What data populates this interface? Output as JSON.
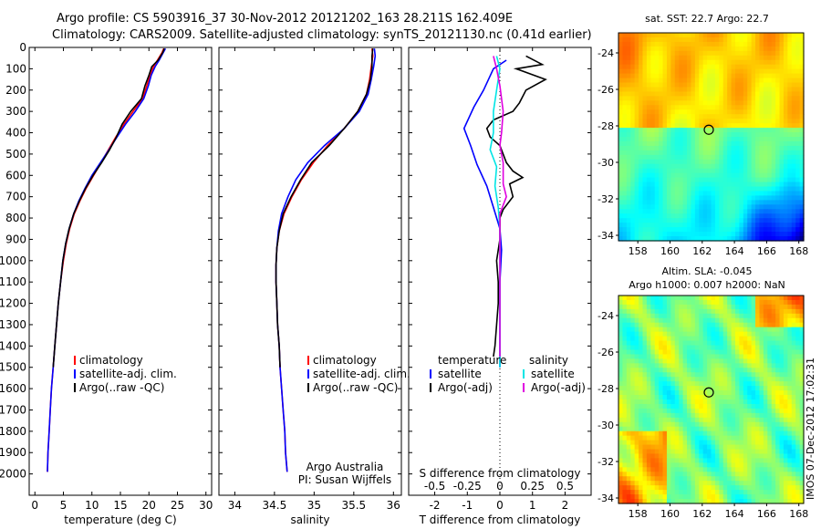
{
  "header": {
    "line1": "Argo profile: CS 5903916_37 30-Nov-2012 20121202_163 28.211S 162.409E",
    "line2": "Climatology: CARS2009. Satellite-adjusted climatology: synTS_20121130.nc (0.41d earlier)"
  },
  "side_label": "IMOS 07-Dec-2012 17:02:31",
  "chart_data": [
    {
      "id": "temperature",
      "type": "line",
      "xlabel": "temperature (deg C)",
      "ylabel": "",
      "xlim": [
        -1,
        31
      ],
      "ylim": [
        0,
        2100
      ],
      "y_reversed": true,
      "xticks": [
        0,
        5,
        10,
        15,
        20,
        25,
        30
      ],
      "yticks": [
        0,
        100,
        200,
        300,
        400,
        500,
        600,
        700,
        800,
        900,
        1000,
        1100,
        1200,
        1300,
        1400,
        1500,
        1600,
        1700,
        1800,
        1900,
        2000
      ],
      "legend": [
        "climatology",
        "satellite-adj. clim.",
        "Argo(..raw -QC)"
      ],
      "series": [
        {
          "name": "climatology",
          "color": "#ff0000",
          "points": [
            [
              22.6,
              5
            ],
            [
              22.3,
              25
            ],
            [
              21.5,
              60
            ],
            [
              20.8,
              90
            ],
            [
              20.2,
              130
            ],
            [
              19.6,
              180
            ],
            [
              18.9,
              240
            ],
            [
              17.2,
              300
            ],
            [
              15.6,
              360
            ],
            [
              14.2,
              420
            ],
            [
              12.9,
              480
            ],
            [
              11.6,
              540
            ],
            [
              10.3,
              600
            ],
            [
              9.0,
              660
            ],
            [
              7.9,
              720
            ],
            [
              6.9,
              780
            ],
            [
              6.1,
              850
            ],
            [
              5.5,
              920
            ],
            [
              5.0,
              1000
            ],
            [
              4.5,
              1100
            ],
            [
              4.1,
              1200
            ],
            [
              3.8,
              1300
            ],
            [
              3.5,
              1400
            ],
            [
              3.2,
              1500
            ],
            [
              2.9,
              1600
            ],
            [
              2.7,
              1700
            ],
            [
              2.5,
              1800
            ],
            [
              2.3,
              1900
            ],
            [
              2.2,
              1990
            ]
          ]
        },
        {
          "name": "satellite-adj. clim.",
          "color": "#0000ff",
          "points": [
            [
              22.9,
              5
            ],
            [
              22.5,
              25
            ],
            [
              21.8,
              60
            ],
            [
              21.1,
              90
            ],
            [
              20.4,
              130
            ],
            [
              19.9,
              180
            ],
            [
              19.1,
              240
            ],
            [
              17.6,
              300
            ],
            [
              15.9,
              360
            ],
            [
              14.4,
              420
            ],
            [
              13.0,
              480
            ],
            [
              11.5,
              540
            ],
            [
              10.0,
              600
            ],
            [
              8.8,
              660
            ],
            [
              7.7,
              720
            ],
            [
              6.8,
              780
            ],
            [
              6.0,
              850
            ],
            [
              5.4,
              920
            ],
            [
              4.9,
              1000
            ],
            [
              4.5,
              1100
            ],
            [
              4.1,
              1200
            ],
            [
              3.8,
              1300
            ],
            [
              3.5,
              1400
            ],
            [
              3.2,
              1500
            ],
            [
              2.9,
              1600
            ],
            [
              2.7,
              1700
            ],
            [
              2.5,
              1800
            ],
            [
              2.3,
              1900
            ],
            [
              2.2,
              1990
            ]
          ]
        },
        {
          "name": "Argo(..raw -QC)",
          "color": "#000000",
          "points": [
            [
              22.7,
              5
            ],
            [
              22.4,
              25
            ],
            [
              21.6,
              60
            ],
            [
              20.5,
              90
            ],
            [
              20.0,
              130
            ],
            [
              19.3,
              180
            ],
            [
              18.7,
              240
            ],
            [
              16.8,
              300
            ],
            [
              15.3,
              360
            ],
            [
              14.3,
              420
            ],
            [
              13.1,
              480
            ],
            [
              11.7,
              540
            ],
            [
              10.2,
              600
            ],
            [
              8.9,
              660
            ],
            [
              7.8,
              720
            ],
            [
              6.8,
              780
            ],
            [
              6.0,
              850
            ],
            [
              5.4,
              920
            ],
            [
              4.9,
              1000
            ],
            [
              4.5,
              1100
            ],
            [
              4.1,
              1200
            ],
            [
              3.8,
              1300
            ],
            [
              3.5,
              1400
            ],
            [
              3.2,
              1500
            ]
          ]
        }
      ]
    },
    {
      "id": "salinity",
      "type": "line",
      "xlabel": "salinity",
      "ylabel": "",
      "xlim": [
        33.8,
        36.1
      ],
      "ylim": [
        0,
        2100
      ],
      "y_reversed": true,
      "xticks": [
        34,
        34.5,
        35,
        35.5,
        36
      ],
      "xticklabels": [
        "34",
        "34.5",
        "35",
        "35.5",
        "36"
      ],
      "legend": [
        "climatology",
        "satellite-adj. clim.",
        "Argo(..raw -QC)"
      ],
      "annotation": [
        "Argo Australia",
        "PI: Susan Wijffels"
      ],
      "series": [
        {
          "name": "climatology",
          "color": "#ff0000",
          "points": [
            [
              35.73,
              5
            ],
            [
              35.74,
              40
            ],
            [
              35.72,
              90
            ],
            [
              35.7,
              150
            ],
            [
              35.66,
              220
            ],
            [
              35.55,
              300
            ],
            [
              35.38,
              380
            ],
            [
              35.17,
              460
            ],
            [
              34.99,
              540
            ],
            [
              34.84,
              620
            ],
            [
              34.72,
              700
            ],
            [
              34.62,
              780
            ],
            [
              34.56,
              860
            ],
            [
              34.53,
              940
            ],
            [
              34.52,
              1020
            ],
            [
              34.52,
              1100
            ],
            [
              34.53,
              1200
            ],
            [
              34.54,
              1300
            ],
            [
              34.56,
              1400
            ],
            [
              34.57,
              1500
            ],
            [
              34.59,
              1600
            ],
            [
              34.61,
              1700
            ],
            [
              34.63,
              1800
            ],
            [
              34.64,
              1900
            ],
            [
              34.66,
              1990
            ]
          ]
        },
        {
          "name": "satellite-adj. clim.",
          "color": "#0000ff",
          "points": [
            [
              35.76,
              5
            ],
            [
              35.77,
              40
            ],
            [
              35.75,
              90
            ],
            [
              35.72,
              150
            ],
            [
              35.68,
              220
            ],
            [
              35.57,
              300
            ],
            [
              35.38,
              380
            ],
            [
              35.13,
              460
            ],
            [
              34.92,
              540
            ],
            [
              34.77,
              620
            ],
            [
              34.67,
              700
            ],
            [
              34.59,
              780
            ],
            [
              34.55,
              860
            ],
            [
              34.53,
              940
            ],
            [
              34.52,
              1020
            ],
            [
              34.52,
              1100
            ],
            [
              34.53,
              1200
            ],
            [
              34.54,
              1300
            ],
            [
              34.56,
              1400
            ],
            [
              34.57,
              1500
            ],
            [
              34.59,
              1600
            ],
            [
              34.61,
              1700
            ],
            [
              34.63,
              1800
            ],
            [
              34.64,
              1900
            ],
            [
              34.66,
              1990
            ]
          ]
        },
        {
          "name": "Argo(..raw -QC)",
          "color": "#000000",
          "points": [
            [
              35.74,
              5
            ],
            [
              35.73,
              40
            ],
            [
              35.73,
              90
            ],
            [
              35.71,
              150
            ],
            [
              35.66,
              220
            ],
            [
              35.55,
              300
            ],
            [
              35.38,
              380
            ],
            [
              35.19,
              460
            ],
            [
              34.97,
              540
            ],
            [
              34.83,
              620
            ],
            [
              34.71,
              700
            ],
            [
              34.61,
              780
            ],
            [
              34.56,
              860
            ],
            [
              34.53,
              940
            ],
            [
              34.52,
              1020
            ],
            [
              34.52,
              1100
            ],
            [
              34.53,
              1200
            ],
            [
              34.54,
              1300
            ],
            [
              34.56,
              1400
            ],
            [
              34.57,
              1500
            ]
          ]
        }
      ]
    },
    {
      "id": "difference",
      "type": "line",
      "xlabel": "T difference from climatology",
      "xlabel_top": "S difference from climatology",
      "ylabel": "",
      "xlim": [
        -2.8,
        2.8
      ],
      "ylim": [
        0,
        2100
      ],
      "y_reversed": true,
      "xticks": [
        -2,
        -1,
        0,
        1,
        2
      ],
      "xticklabels": [
        "-2",
        "-1",
        "0",
        "1",
        "2"
      ],
      "s_ticklabels": [
        "-0.5",
        "-0.25",
        "0",
        "0.25",
        "0.5"
      ],
      "legend_temperature": {
        "title": "temperature",
        "items": [
          "satellite",
          "Argo(-adj)"
        ]
      },
      "legend_salinity": {
        "title": "salinity",
        "items": [
          "satellite",
          "Argo(-adj)"
        ]
      },
      "series": [
        {
          "name": "temperature satellite",
          "color": "#0000ff",
          "points": [
            [
              0.2,
              60
            ],
            [
              -0.2,
              100
            ],
            [
              -0.5,
              200
            ],
            [
              -0.8,
              280
            ],
            [
              -1.1,
              380
            ],
            [
              -0.9,
              460
            ],
            [
              -0.7,
              550
            ],
            [
              -0.4,
              650
            ],
            [
              -0.2,
              750
            ],
            [
              0.0,
              850
            ],
            [
              0.05,
              950
            ],
            [
              0.0,
              1100
            ],
            [
              0.0,
              1300
            ],
            [
              0.0,
              1500
            ]
          ]
        },
        {
          "name": "temperature Argo(-adj)",
          "color": "#000000",
          "points": [
            [
              0.8,
              40
            ],
            [
              1.3,
              80
            ],
            [
              0.5,
              100
            ],
            [
              1.4,
              150
            ],
            [
              0.8,
              200
            ],
            [
              0.6,
              260
            ],
            [
              0.4,
              300
            ],
            [
              -0.2,
              340
            ],
            [
              -0.4,
              380
            ],
            [
              -0.3,
              420
            ],
            [
              0.0,
              460
            ],
            [
              0.2,
              540
            ],
            [
              0.4,
              580
            ],
            [
              0.7,
              610
            ],
            [
              0.3,
              640
            ],
            [
              0.4,
              700
            ],
            [
              0.1,
              760
            ],
            [
              0.0,
              800
            ],
            [
              0.0,
              900
            ],
            [
              -0.1,
              1000
            ],
            [
              -0.05,
              1100
            ],
            [
              -0.05,
              1200
            ],
            [
              -0.1,
              1300
            ],
            [
              -0.15,
              1400
            ],
            [
              -0.2,
              1450
            ]
          ]
        },
        {
          "name": "salinity satellite",
          "color": "#00e5e5",
          "points": [
            [
              -0.1,
              40
            ],
            [
              0.0,
              100
            ],
            [
              -0.1,
              200
            ],
            [
              -0.2,
              300
            ],
            [
              -0.2,
              400
            ],
            [
              -0.3,
              480
            ],
            [
              -0.1,
              560
            ],
            [
              -0.15,
              650
            ],
            [
              -0.05,
              750
            ],
            [
              0.0,
              850
            ],
            [
              0.0,
              1000
            ],
            [
              0.0,
              1200
            ],
            [
              0.0,
              1400
            ],
            [
              0.0,
              1500
            ]
          ]
        },
        {
          "name": "salinity Argo(-adj)",
          "color": "#e000e0",
          "points": [
            [
              -0.2,
              40
            ],
            [
              -0.1,
              100
            ],
            [
              0.0,
              180
            ],
            [
              0.1,
              300
            ],
            [
              0.05,
              400
            ],
            [
              0.0,
              460
            ],
            [
              0.1,
              540
            ],
            [
              0.1,
              640
            ],
            [
              0.2,
              700
            ],
            [
              0.0,
              780
            ],
            [
              0.0,
              900
            ],
            [
              0.0,
              1100
            ],
            [
              0.0,
              1300
            ],
            [
              0.0,
              1450
            ]
          ]
        }
      ]
    },
    {
      "id": "sst_map",
      "type": "heatmap",
      "title": "sat. SST: 22.7  Argo: 22.7",
      "xlim": [
        156.8,
        168.3
      ],
      "ylim": [
        -34.3,
        -22.9
      ],
      "xticks": [
        158,
        160,
        162,
        164,
        166,
        168
      ],
      "yticks": [
        -24,
        -26,
        -28,
        -30,
        -32,
        -34
      ],
      "marker": {
        "lon": 162.409,
        "lat": -28.211
      }
    },
    {
      "id": "sla_map",
      "type": "heatmap",
      "title_line1": "Altim. SLA: -0.045",
      "title_line2": "Argo h1000: 0.007 h2000: NaN",
      "xlim": [
        156.8,
        168.3
      ],
      "ylim": [
        -34.3,
        -22.9
      ],
      "xticks": [
        158,
        160,
        162,
        164,
        166,
        168
      ],
      "yticks": [
        -24,
        -26,
        -28,
        -30,
        -32,
        -34
      ],
      "marker": {
        "lon": 162.409,
        "lat": -28.211
      }
    }
  ]
}
